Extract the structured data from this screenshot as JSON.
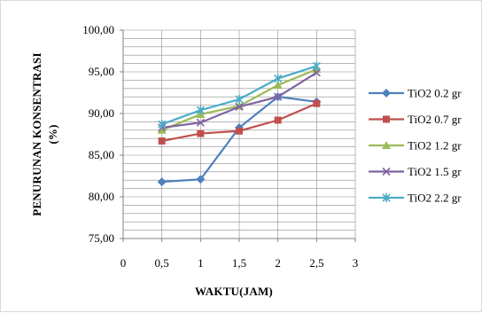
{
  "chart_data": {
    "type": "line",
    "xlabel": "WAKTU(JAM)",
    "ylabel": [
      "PENURUNAN KONSENTRASI",
      "(%)"
    ],
    "xlim": [
      0,
      3
    ],
    "ylim": [
      75,
      100
    ],
    "x_ticks": [
      {
        "value": 0,
        "label": "0"
      },
      {
        "value": 0.5,
        "label": "0,5"
      },
      {
        "value": 1,
        "label": "1"
      },
      {
        "value": 1.5,
        "label": "1,5"
      },
      {
        "value": 2,
        "label": "2"
      },
      {
        "value": 2.5,
        "label": "2,5"
      },
      {
        "value": 3,
        "label": "3"
      }
    ],
    "y_ticks": [
      {
        "value": 75,
        "label": "75,00"
      },
      {
        "value": 80,
        "label": "80,00"
      },
      {
        "value": 85,
        "label": "85,00"
      },
      {
        "value": 90,
        "label": "90,00"
      },
      {
        "value": 95,
        "label": "95,00"
      },
      {
        "value": 100,
        "label": "100,00"
      }
    ],
    "y_gridline_step": 1,
    "grid": true,
    "legend_position": "right",
    "x": [
      0.5,
      1,
      1.5,
      2,
      2.5
    ],
    "series": [
      {
        "name": "TiO2 0.2 gr",
        "color": "#4f81bd",
        "marker": "diamond",
        "values": [
          81.8,
          82.1,
          88.3,
          92.0,
          91.4
        ]
      },
      {
        "name": "TiO2 0.7 gr",
        "color": "#c0504d",
        "marker": "square",
        "values": [
          86.7,
          87.6,
          87.9,
          89.2,
          91.2
        ]
      },
      {
        "name": "TiO2 1.2 gr",
        "color": "#9bbb59",
        "marker": "triangle",
        "values": [
          88.0,
          89.9,
          90.9,
          93.4,
          95.3
        ]
      },
      {
        "name": "TiO2 1.5 gr",
        "color": "#8064a2",
        "marker": "x",
        "values": [
          88.3,
          88.9,
          90.8,
          92.0,
          94.9
        ]
      },
      {
        "name": "TiO2 2.2 gr",
        "color": "#4bacc6",
        "marker": "star",
        "values": [
          88.7,
          90.4,
          91.7,
          94.2,
          95.7
        ]
      }
    ]
  }
}
